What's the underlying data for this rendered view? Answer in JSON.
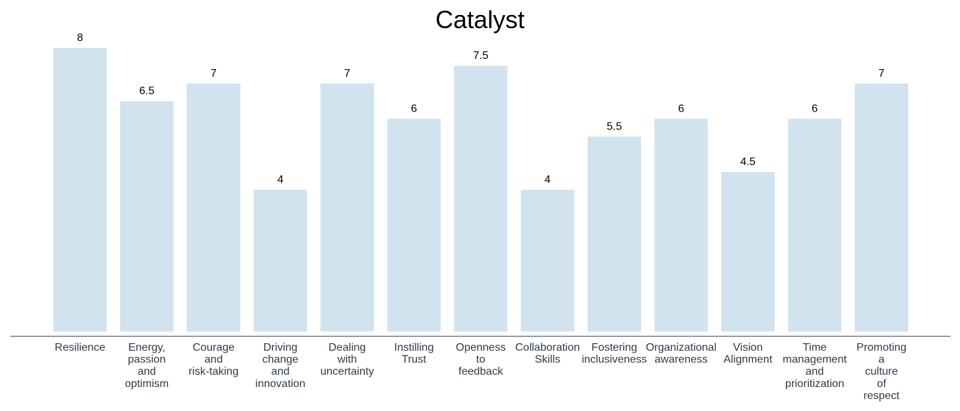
{
  "chart_data": {
    "type": "bar",
    "title": "Catalyst",
    "xlabel": "",
    "ylabel": "",
    "ylim": [
      0,
      8.15
    ],
    "grid": false,
    "bar_color": "#d1e3ef",
    "axis_color": "#2e3a46",
    "categories": [
      "Resilience",
      "Energy, passion and optimism",
      "Courage and risk-taking",
      "Driving change and innovation",
      "Dealing with uncertainty",
      "Instilling Trust",
      "Openness to feedback",
      "Collaboration Skills",
      "Fostering inclusiveness",
      "Organizational awareness",
      "Vision Alignment",
      "Time management and prioritization",
      "Promoting a culture of respect"
    ],
    "category_lines": [
      [
        "Resilience"
      ],
      [
        "Energy,",
        "passion",
        "and",
        "optimism"
      ],
      [
        "Courage",
        "and",
        "risk-taking"
      ],
      [
        "Driving",
        "change",
        "and",
        "innovation"
      ],
      [
        "Dealing",
        "with",
        "uncertainty"
      ],
      [
        "Instilling",
        "Trust"
      ],
      [
        "Openness",
        "to",
        "feedback"
      ],
      [
        "Collaboration",
        "Skills"
      ],
      [
        "Fostering",
        "inclusiveness"
      ],
      [
        "Organizational",
        "awareness"
      ],
      [
        "Vision",
        "Alignment"
      ],
      [
        "Time",
        "management",
        "and",
        "prioritization"
      ],
      [
        "Promoting",
        "a",
        "culture",
        "of",
        "respect"
      ]
    ],
    "values": [
      8,
      6.5,
      7,
      4,
      7,
      6,
      7.5,
      4,
      5.5,
      6,
      4.5,
      6,
      7
    ],
    "value_labels": [
      "8",
      "6.5",
      "7",
      "4",
      "7",
      "6",
      "7.5",
      "4",
      "5.5",
      "6",
      "4.5",
      "6",
      "7"
    ]
  }
}
